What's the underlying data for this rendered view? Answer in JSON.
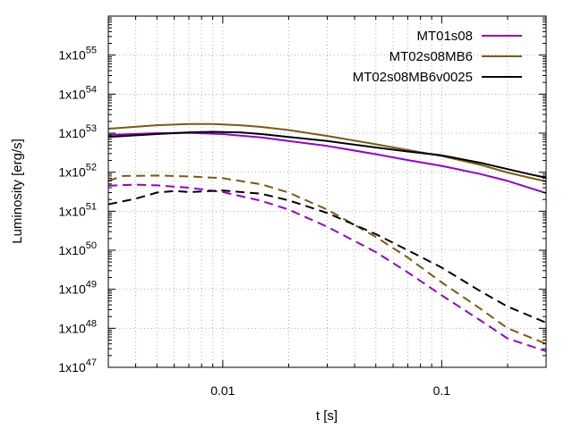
{
  "chart_data": {
    "type": "line",
    "title": "",
    "xlabel": "t [s]",
    "ylabel": "Luminosity [erg/s]",
    "xscale": "log",
    "yscale": "log",
    "xlim": [
      0.003,
      0.3
    ],
    "ylim": [
      1e+47,
      1e+56
    ],
    "grid": true,
    "legend_position": "top-right",
    "x_ticks": [
      {
        "value": 0.01,
        "label": "0.01"
      },
      {
        "value": 0.1,
        "label": "0.1"
      }
    ],
    "y_ticks": [
      {
        "value": 1e+47,
        "base": "1x10",
        "exp": "47"
      },
      {
        "value": 1e+48,
        "base": "1x10",
        "exp": "48"
      },
      {
        "value": 1e+49,
        "base": "1x10",
        "exp": "49"
      },
      {
        "value": 1e+50,
        "base": "1x10",
        "exp": "50"
      },
      {
        "value": 1e+51,
        "base": "1x10",
        "exp": "51"
      },
      {
        "value": 1e+52,
        "base": "1x10",
        "exp": "52"
      },
      {
        "value": 1e+53,
        "base": "1x10",
        "exp": "53"
      },
      {
        "value": 1e+54,
        "base": "1x10",
        "exp": "54"
      },
      {
        "value": 1e+55,
        "base": "1x10",
        "exp": "55"
      }
    ],
    "series": [
      {
        "name": "MT01s08",
        "color": "#9400d3",
        "dash": "solid",
        "in_legend": true,
        "x": [
          0.003,
          0.005,
          0.007,
          0.01,
          0.015,
          0.02,
          0.03,
          0.05,
          0.07,
          0.1,
          0.15,
          0.2,
          0.3
        ],
        "y": [
          9e+52,
          1e+53,
          1.02e+53,
          9.5e+52,
          7.8e+52,
          6.3e+52,
          4.7e+52,
          2.9e+52,
          2.05e+52,
          1.45e+52,
          9e+51,
          6e+51,
          2.9e+51
        ]
      },
      {
        "name": "MT02s08MB6",
        "color": "#7a5b10",
        "dash": "solid",
        "in_legend": true,
        "x": [
          0.003,
          0.005,
          0.007,
          0.009,
          0.012,
          0.015,
          0.02,
          0.03,
          0.05,
          0.07,
          0.1,
          0.15,
          0.2,
          0.25,
          0.3
        ],
        "y": [
          1.3e+53,
          1.6e+53,
          1.72e+53,
          1.72e+53,
          1.6e+53,
          1.45e+53,
          1.2e+53,
          8.5e+52,
          5.2e+52,
          3.7e+52,
          2.6e+52,
          1.55e+52,
          9.8e+51,
          7.3e+51,
          5.8e+51
        ]
      },
      {
        "name": "MT02s08MB6v0025",
        "color": "#000000",
        "dash": "solid",
        "in_legend": true,
        "x": [
          0.003,
          0.005,
          0.007,
          0.009,
          0.012,
          0.015,
          0.02,
          0.03,
          0.05,
          0.07,
          0.1,
          0.15,
          0.2,
          0.25,
          0.3
        ],
        "y": [
          8e+52,
          9.5e+52,
          1.05e+53,
          1.08e+53,
          1.05e+53,
          9.5e+52,
          8e+52,
          6.3e+52,
          4.3e+52,
          3.4e+52,
          2.7e+52,
          1.75e+52,
          1.2e+52,
          9e+51,
          7.2e+51
        ]
      },
      {
        "name": "MT01s08 (dashed)",
        "color": "#9400d3",
        "dash": "dashed",
        "in_legend": false,
        "x": [
          0.003,
          0.004,
          0.005,
          0.007,
          0.01,
          0.015,
          0.02,
          0.03,
          0.05,
          0.07,
          0.1,
          0.15,
          0.2,
          0.3
        ],
        "y": [
          4.5e+51,
          4.8e+51,
          4.6e+51,
          4e+51,
          3.1e+51,
          1.85e+51,
          1.1e+51,
          4e+50,
          9e+49,
          2.7e+49,
          7e+48,
          1.6e+48,
          5.5e+47,
          2.6e+47
        ]
      },
      {
        "name": "MT02s08MB6 (dashed)",
        "color": "#7a5b10",
        "dash": "dashed",
        "in_legend": false,
        "x": [
          0.003,
          0.0035,
          0.005,
          0.007,
          0.01,
          0.015,
          0.02,
          0.03,
          0.05,
          0.07,
          0.1,
          0.15,
          0.2,
          0.3
        ],
        "y": [
          6e+51,
          8e+51,
          8.2e+51,
          7.8e+51,
          7e+51,
          4.9e+51,
          3e+51,
          1.1e+51,
          2.2e+50,
          6.5e+49,
          1.5e+49,
          3.2e+48,
          1e+48,
          4e+47
        ]
      },
      {
        "name": "MT02s08MB6v0025 (dashed)",
        "color": "#000000",
        "dash": "dashed",
        "in_legend": false,
        "x": [
          0.003,
          0.004,
          0.005,
          0.006,
          0.007,
          0.01,
          0.015,
          0.02,
          0.03,
          0.05,
          0.07,
          0.1,
          0.15,
          0.2,
          0.3
        ],
        "y": [
          1.5e+51,
          2.1e+51,
          3e+51,
          3.3e+51,
          3.1e+51,
          3.4e+51,
          2.8e+51,
          1.9e+51,
          9e+50,
          2.6e+50,
          1e+50,
          3.6e+49,
          9e+48,
          3.6e+48,
          1.4e+48
        ]
      }
    ]
  }
}
